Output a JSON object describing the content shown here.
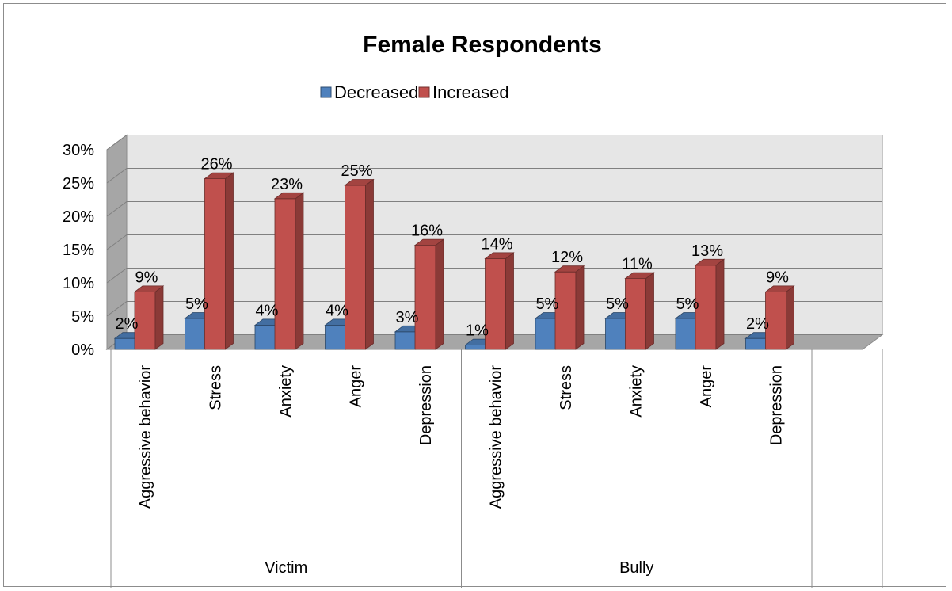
{
  "chart_data": {
    "type": "bar",
    "title": "Female Respondents",
    "groups": [
      "Victim",
      "Bully"
    ],
    "categories": [
      {
        "group": "Victim",
        "label": "Aggressive behavior"
      },
      {
        "group": "Victim",
        "label": "Stress"
      },
      {
        "group": "Victim",
        "label": "Anxiety"
      },
      {
        "group": "Victim",
        "label": "Anger"
      },
      {
        "group": "Victim",
        "label": "Depression"
      },
      {
        "group": "Bully",
        "label": "Aggressive behavior"
      },
      {
        "group": "Bully",
        "label": "Stress"
      },
      {
        "group": "Bully",
        "label": "Anxiety"
      },
      {
        "group": "Bully",
        "label": "Anger"
      },
      {
        "group": "Bully",
        "label": "Depression"
      }
    ],
    "series": [
      {
        "name": "Decreased",
        "color": "#4f81bd",
        "values": [
          2,
          5,
          4,
          4,
          3,
          1,
          5,
          5,
          5,
          2
        ],
        "labels": [
          "2%",
          "5%",
          "4%",
          "4%",
          "3%",
          "1%",
          "5%",
          "5%",
          "5%",
          "2%"
        ]
      },
      {
        "name": "Increased",
        "color": "#c0504d",
        "values": [
          9,
          26,
          23,
          25,
          16,
          14,
          12,
          11,
          13,
          9
        ],
        "labels": [
          "9%",
          "26%",
          "23%",
          "25%",
          "16%",
          "14%",
          "12%",
          "11%",
          "13%",
          "9%"
        ]
      }
    ],
    "y_ticks": [
      "0%",
      "5%",
      "10%",
      "15%",
      "20%",
      "25%",
      "30%"
    ],
    "ylim": [
      0,
      30
    ],
    "grid": true,
    "legend_position": "top"
  }
}
